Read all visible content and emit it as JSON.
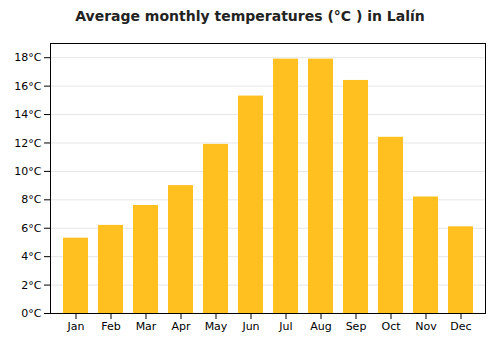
{
  "chart_data": {
    "type": "bar",
    "title": "Average monthly temperatures (°C ) in Lalín",
    "categories": [
      "Jan",
      "Feb",
      "Mar",
      "Apr",
      "May",
      "Jun",
      "Jul",
      "Aug",
      "Sep",
      "Oct",
      "Nov",
      "Dec"
    ],
    "values": [
      5.3,
      6.2,
      7.6,
      9.0,
      11.9,
      15.3,
      17.9,
      17.9,
      16.4,
      12.4,
      8.2,
      6.1
    ],
    "color": "#FFC020",
    "ylim": [
      0,
      19
    ],
    "yticks": [
      {
        "value": 0,
        "label": "0°C"
      },
      {
        "value": 2,
        "label": "2°C"
      },
      {
        "value": 4,
        "label": "4°C"
      },
      {
        "value": 6,
        "label": "6°C"
      },
      {
        "value": 8,
        "label": "8°C"
      },
      {
        "value": 10,
        "label": "10°C"
      },
      {
        "value": 12,
        "label": "12°C"
      },
      {
        "value": 14,
        "label": "14°C"
      },
      {
        "value": 16,
        "label": "16°C"
      },
      {
        "value": 18,
        "label": "18°C"
      }
    ],
    "grid": true
  }
}
